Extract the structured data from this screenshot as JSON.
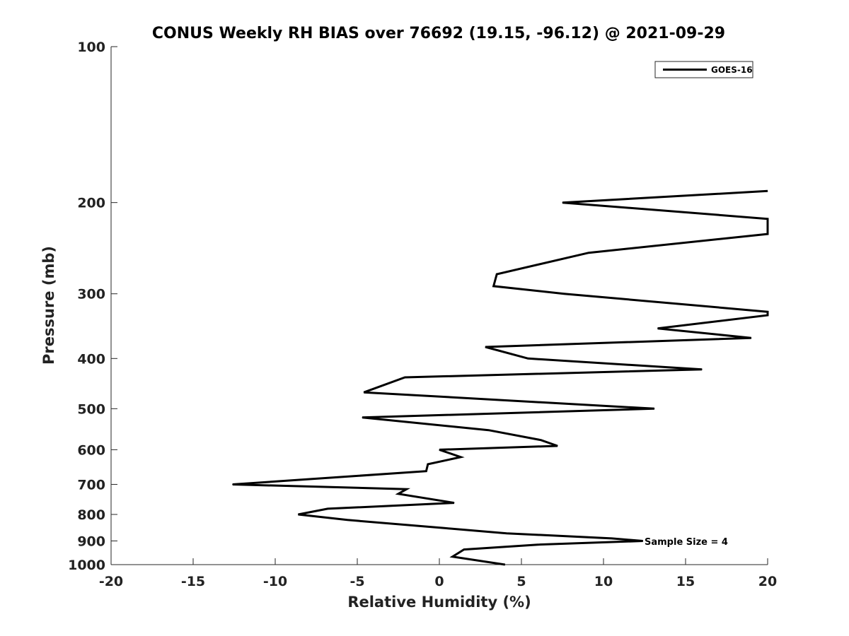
{
  "chart_data": {
    "type": "line",
    "title": "CONUS Weekly RH BIAS over 76692 (19.15, -96.12) @ 2021-09-29",
    "xlabel": "Relative Humidity (%)",
    "ylabel": "Pressure (mb)",
    "xlim": [
      -20,
      20
    ],
    "ylim": [
      1000,
      100
    ],
    "y_scale": "log",
    "y_reversed": true,
    "x_ticks": [
      -20,
      -15,
      -10,
      -5,
      0,
      5,
      10,
      15,
      20
    ],
    "x_tick_labels": [
      "-20",
      "-15",
      "-10",
      "-5",
      "0",
      "5",
      "10",
      "15",
      "20"
    ],
    "y_ticks": [
      100,
      200,
      300,
      400,
      500,
      600,
      700,
      800,
      900,
      1000
    ],
    "y_tick_labels": [
      "100",
      "200",
      "300",
      "400",
      "500",
      "600",
      "700",
      "800",
      "900",
      "1000"
    ],
    "grid": false,
    "legend": {
      "placement": "top-right",
      "entries": [
        "GOES-16"
      ]
    },
    "annotation": "Sample Size = 4",
    "series": [
      {
        "name": "GOES-16",
        "color": "#000000",
        "points": [
          {
            "x": 20.0,
            "y": 190
          },
          {
            "x": 7.5,
            "y": 200
          },
          {
            "x": 20.0,
            "y": 215
          },
          {
            "x": 20.0,
            "y": 230
          },
          {
            "x": 9.1,
            "y": 250
          },
          {
            "x": 3.5,
            "y": 275
          },
          {
            "x": 3.3,
            "y": 290
          },
          {
            "x": 7.6,
            "y": 300
          },
          {
            "x": 20.0,
            "y": 325
          },
          {
            "x": 20.0,
            "y": 330
          },
          {
            "x": 13.3,
            "y": 350
          },
          {
            "x": 19.0,
            "y": 365
          },
          {
            "x": 2.8,
            "y": 380
          },
          {
            "x": 5.4,
            "y": 400
          },
          {
            "x": 16.0,
            "y": 420
          },
          {
            "x": -2.1,
            "y": 435
          },
          {
            "x": -4.6,
            "y": 465
          },
          {
            "x": 13.1,
            "y": 500
          },
          {
            "x": -4.7,
            "y": 520
          },
          {
            "x": 3.0,
            "y": 550
          },
          {
            "x": 6.2,
            "y": 575
          },
          {
            "x": 7.2,
            "y": 590
          },
          {
            "x": 0.0,
            "y": 600
          },
          {
            "x": 1.3,
            "y": 620
          },
          {
            "x": -0.7,
            "y": 640
          },
          {
            "x": -0.8,
            "y": 660
          },
          {
            "x": -12.6,
            "y": 700
          },
          {
            "x": -2.0,
            "y": 715
          },
          {
            "x": -2.5,
            "y": 730
          },
          {
            "x": 0.9,
            "y": 760
          },
          {
            "x": -6.8,
            "y": 780
          },
          {
            "x": -8.6,
            "y": 800
          },
          {
            "x": -5.6,
            "y": 820
          },
          {
            "x": 0.3,
            "y": 850
          },
          {
            "x": 4.1,
            "y": 870
          },
          {
            "x": 10.5,
            "y": 890
          },
          {
            "x": 12.4,
            "y": 900
          },
          {
            "x": 6.0,
            "y": 915
          },
          {
            "x": 1.5,
            "y": 935
          },
          {
            "x": 0.8,
            "y": 965
          },
          {
            "x": 4.0,
            "y": 1000
          }
        ]
      }
    ]
  }
}
